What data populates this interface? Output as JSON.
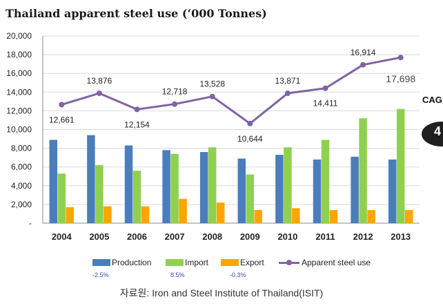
{
  "title": "Thailand apparent steel use (‘000 Tonnes)",
  "source": "자료원: Iron and Steel Institute of Thailand(ISIT)",
  "cagr_label": "CAG",
  "cagr_value": "4",
  "growth_labels": [
    "-2.5%",
    "8.5%",
    "-0.3%"
  ],
  "colors": {
    "production": "#4a7ebb",
    "import": "#8fd14f",
    "export": "#ffa500",
    "apparent": "#8064a2",
    "grid": "#d9d9d9"
  },
  "chart_data": {
    "type": "bar",
    "categories": [
      "2004",
      "2005",
      "2006",
      "2007",
      "2008",
      "2009",
      "2010",
      "2011",
      "2012",
      "2013"
    ],
    "series": [
      {
        "name": "Production",
        "type": "bar",
        "values": [
          8900,
          9400,
          8300,
          7800,
          7600,
          6900,
          7300,
          6800,
          7100,
          6800
        ]
      },
      {
        "name": "Import",
        "type": "bar",
        "values": [
          5300,
          6200,
          5600,
          7400,
          8100,
          5200,
          8100,
          8900,
          11200,
          12200
        ]
      },
      {
        "name": "Export",
        "type": "bar",
        "values": [
          1700,
          1800,
          1800,
          2600,
          2200,
          1400,
          1600,
          1400,
          1400,
          1400
        ]
      },
      {
        "name": "Apparent steel use",
        "type": "line",
        "values": [
          12661,
          13876,
          12154,
          12718,
          13528,
          10644,
          13871,
          14411,
          16914,
          17698
        ]
      }
    ],
    "data_labels": [
      "12,661",
      "13,876",
      "12,154",
      "12,718",
      "13,528",
      "10,644",
      "13,871",
      "14,411",
      "16,914",
      "17,698"
    ],
    "ylim": [
      0,
      20000
    ],
    "yticks": [
      "-",
      "2,000",
      "4,000",
      "6,000",
      "8,000",
      "10,000",
      "12,000",
      "14,000",
      "16,000",
      "18,000",
      "20,000"
    ],
    "legend_position": "bottom",
    "grid": true
  }
}
